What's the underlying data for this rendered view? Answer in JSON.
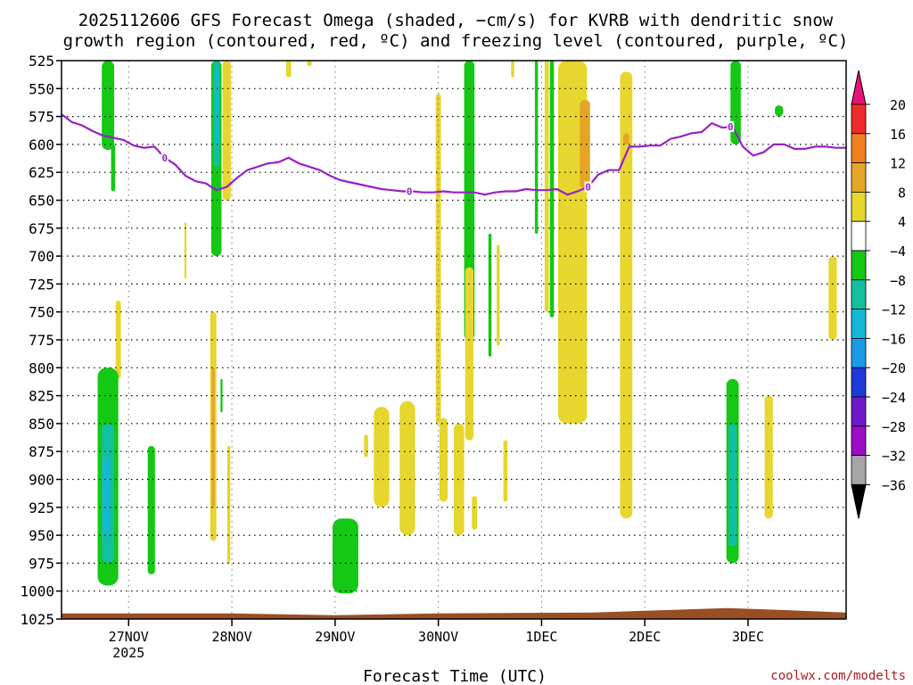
{
  "chart_data": {
    "type": "heatmap",
    "title_line1": "2025112606 GFS Forecast Omega (shaded, −cm/s) for KVRB with dendritic snow",
    "title_line2": "growth region (contoured, red, ºC) and freezing level (contoured, purple, ºC)",
    "xlabel": "Forecast Time (UTC)",
    "credit": "coolwx.com/modelts",
    "x_range_days": [
      -0.65,
      6.95
    ],
    "x_ticks": [
      {
        "day": 0.0,
        "label": "27NOV",
        "sub": "2025"
      },
      {
        "day": 1.0,
        "label": "28NOV",
        "sub": ""
      },
      {
        "day": 2.0,
        "label": "29NOV",
        "sub": ""
      },
      {
        "day": 3.0,
        "label": "30NOV",
        "sub": ""
      },
      {
        "day": 4.0,
        "label": "1DEC",
        "sub": ""
      },
      {
        "day": 5.0,
        "label": "2DEC",
        "sub": ""
      },
      {
        "day": 6.0,
        "label": "3DEC",
        "sub": ""
      }
    ],
    "y_range_hpa": [
      1025,
      525
    ],
    "y_ticks": [
      "525",
      "550",
      "575",
      "600",
      "625",
      "650",
      "675",
      "700",
      "725",
      "750",
      "775",
      "800",
      "825",
      "850",
      "875",
      "900",
      "925",
      "950",
      "975",
      "1000",
      "1025"
    ],
    "grid": true,
    "colorbar": {
      "levels": [
        "20",
        "16",
        "12",
        "8",
        "4",
        "−4",
        "−8",
        "−12",
        "−16",
        "−20",
        "−24",
        "−28",
        "−32",
        "−36"
      ],
      "colors": [
        "#e8137a",
        "#ef2a2a",
        "#ef7f1f",
        "#e5a627",
        "#e6d62e",
        "#ffffff",
        "#14c814",
        "#12c0a0",
        "#14b8d6",
        "#1b9ae6",
        "#1d3ad6",
        "#6e1ac9",
        "#9a0ec5",
        "#a6a6a6",
        "#000000"
      ]
    },
    "freezing_level": {
      "label": "0",
      "days": [
        -0.65,
        -0.55,
        -0.45,
        -0.35,
        -0.25,
        -0.15,
        -0.05,
        0.05,
        0.15,
        0.25,
        0.35,
        0.45,
        0.55,
        0.65,
        0.75,
        0.85,
        0.95,
        1.05,
        1.15,
        1.25,
        1.35,
        1.45,
        1.55,
        1.65,
        1.75,
        1.85,
        1.95,
        2.05,
        2.15,
        2.25,
        2.35,
        2.45,
        2.55,
        2.65,
        2.75,
        2.85,
        2.95,
        3.05,
        3.15,
        3.25,
        3.35,
        3.45,
        3.55,
        3.65,
        3.75,
        3.85,
        3.95,
        4.05,
        4.15,
        4.25,
        4.35,
        4.45,
        4.55,
        4.65,
        4.75,
        4.85,
        4.95,
        5.05,
        5.15,
        5.25,
        5.35,
        5.45,
        5.55,
        5.65,
        5.75,
        5.85,
        5.95,
        6.05,
        6.15,
        6.25,
        6.35,
        6.45,
        6.55,
        6.65,
        6.75,
        6.85,
        6.95
      ],
      "hpa": [
        573,
        580,
        583,
        588,
        592,
        594,
        596,
        601,
        603,
        602,
        612,
        618,
        628,
        633,
        635,
        641,
        638,
        630,
        623,
        620,
        617,
        616,
        612,
        617,
        620,
        623,
        628,
        632,
        634,
        636,
        638,
        640,
        641,
        642,
        642,
        643,
        643,
        642,
        643,
        643,
        643,
        645,
        643,
        642,
        642,
        640,
        641,
        641,
        640,
        645,
        642,
        638,
        627,
        623,
        623,
        602,
        602,
        601,
        601,
        595,
        593,
        590,
        589,
        581,
        585,
        584,
        602,
        610,
        607,
        600,
        600,
        604,
        604,
        602,
        602,
        603,
        603
      ]
    },
    "surface_hpa": 1020,
    "omega_regions_note": "shaded omega; values in −cm/s",
    "omega_regions": [
      {
        "day": -0.2,
        "hpa_top": 525,
        "hpa_bot": 605,
        "w": 0.12,
        "v": -6
      },
      {
        "day": -0.15,
        "hpa_top": 600,
        "hpa_bot": 642,
        "w": 0.04,
        "v": -6
      },
      {
        "day": -0.1,
        "hpa_top": 740,
        "hpa_bot": 810,
        "w": 0.05,
        "v": 5
      },
      {
        "day": -0.2,
        "hpa_top": 800,
        "hpa_bot": 995,
        "w": 0.2,
        "v": -6
      },
      {
        "day": -0.2,
        "hpa_top": 850,
        "hpa_bot": 975,
        "w": 0.12,
        "v": -10
      },
      {
        "day": -0.22,
        "hpa_top": 880,
        "hpa_bot": 950,
        "w": 0.06,
        "v": -14
      },
      {
        "day": 0.22,
        "hpa_top": 870,
        "hpa_bot": 985,
        "w": 0.07,
        "v": -6
      },
      {
        "day": 0.55,
        "hpa_top": 670,
        "hpa_bot": 720,
        "w": 0.02,
        "v": 5
      },
      {
        "day": 0.85,
        "hpa_top": 525,
        "hpa_bot": 700,
        "w": 0.1,
        "v": -6
      },
      {
        "day": 0.85,
        "hpa_top": 525,
        "hpa_bot": 620,
        "w": 0.06,
        "v": -10
      },
      {
        "day": 0.86,
        "hpa_top": 530,
        "hpa_bot": 600,
        "w": 0.03,
        "v": -14
      },
      {
        "day": 0.95,
        "hpa_top": 525,
        "hpa_bot": 650,
        "w": 0.08,
        "v": 5
      },
      {
        "day": 0.82,
        "hpa_top": 750,
        "hpa_bot": 955,
        "w": 0.06,
        "v": 5
      },
      {
        "day": 0.82,
        "hpa_top": 800,
        "hpa_bot": 925,
        "w": 0.03,
        "v": 10
      },
      {
        "day": 0.9,
        "hpa_top": 810,
        "hpa_bot": 840,
        "w": 0.02,
        "v": -6
      },
      {
        "day": 0.97,
        "hpa_top": 870,
        "hpa_bot": 975,
        "w": 0.03,
        "v": 5
      },
      {
        "day": 1.55,
        "hpa_top": 525,
        "hpa_bot": 540,
        "w": 0.05,
        "v": 5
      },
      {
        "day": 1.75,
        "hpa_top": 525,
        "hpa_bot": 530,
        "w": 0.05,
        "v": 5
      },
      {
        "day": 2.1,
        "hpa_top": 935,
        "hpa_bot": 1002,
        "w": 0.25,
        "v": -6
      },
      {
        "day": 2.3,
        "hpa_top": 860,
        "hpa_bot": 880,
        "w": 0.04,
        "v": 5
      },
      {
        "day": 2.45,
        "hpa_top": 835,
        "hpa_bot": 925,
        "w": 0.15,
        "v": 5
      },
      {
        "day": 2.7,
        "hpa_top": 830,
        "hpa_bot": 950,
        "w": 0.15,
        "v": 5
      },
      {
        "day": 3.0,
        "hpa_top": 555,
        "hpa_bot": 850,
        "w": 0.05,
        "v": 5
      },
      {
        "day": 3.05,
        "hpa_top": 845,
        "hpa_bot": 920,
        "w": 0.08,
        "v": 5
      },
      {
        "day": 3.3,
        "hpa_top": 525,
        "hpa_bot": 775,
        "w": 0.1,
        "v": -6
      },
      {
        "day": 3.3,
        "hpa_top": 710,
        "hpa_bot": 865,
        "w": 0.08,
        "v": 5
      },
      {
        "day": 3.2,
        "hpa_top": 850,
        "hpa_bot": 950,
        "w": 0.1,
        "v": 5
      },
      {
        "day": 3.35,
        "hpa_top": 915,
        "hpa_bot": 945,
        "w": 0.05,
        "v": 5
      },
      {
        "day": 3.5,
        "hpa_top": 680,
        "hpa_bot": 790,
        "w": 0.03,
        "v": -6
      },
      {
        "day": 3.58,
        "hpa_top": 690,
        "hpa_bot": 780,
        "w": 0.03,
        "v": 5
      },
      {
        "day": 3.72,
        "hpa_top": 525,
        "hpa_bot": 540,
        "w": 0.03,
        "v": 5
      },
      {
        "day": 3.65,
        "hpa_top": 865,
        "hpa_bot": 920,
        "w": 0.04,
        "v": 5
      },
      {
        "day": 3.95,
        "hpa_top": 525,
        "hpa_bot": 680,
        "w": 0.03,
        "v": -6
      },
      {
        "day": 4.05,
        "hpa_top": 525,
        "hpa_bot": 750,
        "w": 0.04,
        "v": 5
      },
      {
        "day": 4.1,
        "hpa_top": 525,
        "hpa_bot": 755,
        "w": 0.04,
        "v": -6
      },
      {
        "day": 4.3,
        "hpa_top": 525,
        "hpa_bot": 850,
        "w": 0.28,
        "v": 5
      },
      {
        "day": 4.42,
        "hpa_top": 560,
        "hpa_bot": 640,
        "w": 0.1,
        "v": 10
      },
      {
        "day": 4.82,
        "hpa_top": 535,
        "hpa_bot": 935,
        "w": 0.12,
        "v": 5
      },
      {
        "day": 4.82,
        "hpa_top": 590,
        "hpa_bot": 600,
        "w": 0.06,
        "v": 10
      },
      {
        "day": 5.88,
        "hpa_top": 525,
        "hpa_bot": 600,
        "w": 0.1,
        "v": -6
      },
      {
        "day": 6.3,
        "hpa_top": 565,
        "hpa_bot": 575,
        "w": 0.08,
        "v": -6
      },
      {
        "day": 5.85,
        "hpa_top": 810,
        "hpa_bot": 975,
        "w": 0.12,
        "v": -6
      },
      {
        "day": 5.85,
        "hpa_top": 850,
        "hpa_bot": 960,
        "w": 0.08,
        "v": -10
      },
      {
        "day": 6.2,
        "hpa_top": 825,
        "hpa_bot": 935,
        "w": 0.08,
        "v": 5
      },
      {
        "day": 6.82,
        "hpa_top": 700,
        "hpa_bot": 775,
        "w": 0.08,
        "v": 5
      }
    ]
  }
}
